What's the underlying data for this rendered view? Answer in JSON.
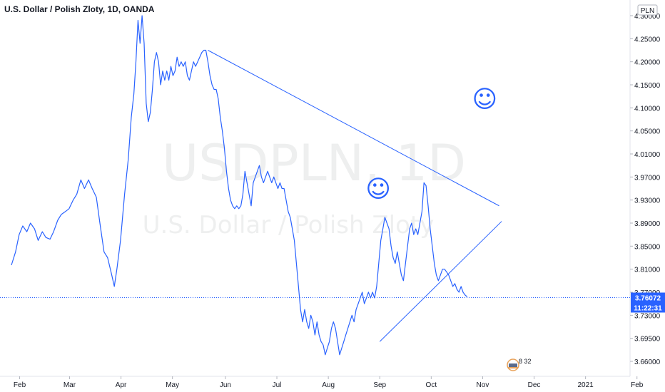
{
  "chart_data": {
    "type": "line",
    "title": "U.S. Dollar / Polish Zloty, 1D, OANDA",
    "currency": "PLN",
    "watermark": {
      "symbol": "USDPLN, 1D",
      "name": "U.S. Dollar / Polish Zloty"
    },
    "xlabel": "",
    "ylabel": "",
    "x_tick_labels": [
      {
        "label": "Feb",
        "t": 0.16
      },
      {
        "label": "Mar",
        "t": 1.13
      },
      {
        "label": "Apr",
        "t": 2.13
      },
      {
        "label": "May",
        "t": 3.13
      },
      {
        "label": "Jun",
        "t": 4.16
      },
      {
        "label": "Jul",
        "t": 5.16
      },
      {
        "label": "Aug",
        "t": 6.16
      },
      {
        "label": "Sep",
        "t": 7.16
      },
      {
        "label": "Oct",
        "t": 8.16
      },
      {
        "label": "Nov",
        "t": 9.16
      },
      {
        "label": "Dec",
        "t": 10.16
      },
      {
        "label": "2021",
        "t": 11.16
      },
      {
        "label": "Feb",
        "t": 12.16
      }
    ],
    "y_tick_labels": [
      "4.30000",
      "4.25000",
      "4.20000",
      "4.15000",
      "4.10000",
      "4.05000",
      "4.01000",
      "3.97000",
      "3.93000",
      "3.89000",
      "3.85000",
      "3.81000",
      "3.77000",
      "3.73000",
      "3.69500",
      "3.66000"
    ],
    "ylim": [
      3.645,
      4.31
    ],
    "series": [
      {
        "color": "#2962ff",
        "points": [
          [
            0,
            3.817
          ],
          [
            0.08,
            3.84
          ],
          [
            0.15,
            3.87
          ],
          [
            0.22,
            3.885
          ],
          [
            0.3,
            3.875
          ],
          [
            0.37,
            3.89
          ],
          [
            0.45,
            3.88
          ],
          [
            0.52,
            3.86
          ],
          [
            0.6,
            3.875
          ],
          [
            0.67,
            3.865
          ],
          [
            0.75,
            3.862
          ],
          [
            0.82,
            3.875
          ],
          [
            0.9,
            3.895
          ],
          [
            0.97,
            3.905
          ],
          [
            1.05,
            3.91
          ],
          [
            1.12,
            3.915
          ],
          [
            1.2,
            3.93
          ],
          [
            1.27,
            3.94
          ],
          [
            1.35,
            3.965
          ],
          [
            1.42,
            3.95
          ],
          [
            1.5,
            3.965
          ],
          [
            1.57,
            3.95
          ],
          [
            1.65,
            3.935
          ],
          [
            1.72,
            3.89
          ],
          [
            1.8,
            3.84
          ],
          [
            1.87,
            3.83
          ],
          [
            1.95,
            3.8
          ],
          [
            2.0,
            3.78
          ],
          [
            2.05,
            3.81
          ],
          [
            2.12,
            3.86
          ],
          [
            2.2,
            3.94
          ],
          [
            2.27,
            4.0
          ],
          [
            2.33,
            4.08
          ],
          [
            2.38,
            4.13
          ],
          [
            2.42,
            4.2
          ],
          [
            2.46,
            4.29
          ],
          [
            2.5,
            4.24
          ],
          [
            2.54,
            4.3
          ],
          [
            2.58,
            4.24
          ],
          [
            2.62,
            4.11
          ],
          [
            2.66,
            4.07
          ],
          [
            2.7,
            4.09
          ],
          [
            2.74,
            4.14
          ],
          [
            2.78,
            4.2
          ],
          [
            2.82,
            4.22
          ],
          [
            2.86,
            4.2
          ],
          [
            2.9,
            4.15
          ],
          [
            2.94,
            4.18
          ],
          [
            2.98,
            4.16
          ],
          [
            3.02,
            4.18
          ],
          [
            3.06,
            4.16
          ],
          [
            3.1,
            4.19
          ],
          [
            3.14,
            4.17
          ],
          [
            3.18,
            4.18
          ],
          [
            3.22,
            4.21
          ],
          [
            3.26,
            4.19
          ],
          [
            3.3,
            4.2
          ],
          [
            3.34,
            4.19
          ],
          [
            3.38,
            4.2
          ],
          [
            3.42,
            4.17
          ],
          [
            3.46,
            4.16
          ],
          [
            3.5,
            4.18
          ],
          [
            3.54,
            4.2
          ],
          [
            3.58,
            4.19
          ],
          [
            3.62,
            4.2
          ],
          [
            3.66,
            4.21
          ],
          [
            3.7,
            4.22
          ],
          [
            3.74,
            4.225
          ],
          [
            3.78,
            4.225
          ],
          [
            3.82,
            4.2
          ],
          [
            3.86,
            4.17
          ],
          [
            3.9,
            4.15
          ],
          [
            3.94,
            4.14
          ],
          [
            3.98,
            4.14
          ],
          [
            4.02,
            4.12
          ],
          [
            4.06,
            4.08
          ],
          [
            4.1,
            4.05
          ],
          [
            4.14,
            4.02
          ],
          [
            4.18,
            3.98
          ],
          [
            4.22,
            3.95
          ],
          [
            4.26,
            3.93
          ],
          [
            4.3,
            3.92
          ],
          [
            4.34,
            3.915
          ],
          [
            4.38,
            3.92
          ],
          [
            4.42,
            3.915
          ],
          [
            4.46,
            3.92
          ],
          [
            4.5,
            3.94
          ],
          [
            4.54,
            3.98
          ],
          [
            4.58,
            3.96
          ],
          [
            4.62,
            3.94
          ],
          [
            4.66,
            3.92
          ],
          [
            4.7,
            3.96
          ],
          [
            4.74,
            3.97
          ],
          [
            4.78,
            3.98
          ],
          [
            4.82,
            3.99
          ],
          [
            4.86,
            3.97
          ],
          [
            4.9,
            3.96
          ],
          [
            4.94,
            3.97
          ],
          [
            4.98,
            3.98
          ],
          [
            5.02,
            3.97
          ],
          [
            5.06,
            3.96
          ],
          [
            5.1,
            3.97
          ],
          [
            5.14,
            3.96
          ],
          [
            5.18,
            3.95
          ],
          [
            5.22,
            3.96
          ],
          [
            5.26,
            3.95
          ],
          [
            5.3,
            3.95
          ],
          [
            5.34,
            3.93
          ],
          [
            5.38,
            3.91
          ],
          [
            5.42,
            3.9
          ],
          [
            5.46,
            3.88
          ],
          [
            5.5,
            3.86
          ],
          [
            5.54,
            3.82
          ],
          [
            5.58,
            3.78
          ],
          [
            5.62,
            3.74
          ],
          [
            5.66,
            3.72
          ],
          [
            5.7,
            3.74
          ],
          [
            5.74,
            3.72
          ],
          [
            5.78,
            3.71
          ],
          [
            5.82,
            3.73
          ],
          [
            5.86,
            3.72
          ],
          [
            5.9,
            3.7
          ],
          [
            5.94,
            3.72
          ],
          [
            5.98,
            3.7
          ],
          [
            6.02,
            3.69
          ],
          [
            6.06,
            3.685
          ],
          [
            6.1,
            3.67
          ],
          [
            6.14,
            3.68
          ],
          [
            6.18,
            3.69
          ],
          [
            6.22,
            3.71
          ],
          [
            6.26,
            3.72
          ],
          [
            6.3,
            3.71
          ],
          [
            6.34,
            3.69
          ],
          [
            6.38,
            3.67
          ],
          [
            6.42,
            3.68
          ],
          [
            6.46,
            3.69
          ],
          [
            6.5,
            3.7
          ],
          [
            6.54,
            3.71
          ],
          [
            6.58,
            3.72
          ],
          [
            6.62,
            3.73
          ],
          [
            6.66,
            3.72
          ],
          [
            6.7,
            3.74
          ],
          [
            6.74,
            3.75
          ],
          [
            6.78,
            3.76
          ],
          [
            6.82,
            3.77
          ],
          [
            6.86,
            3.75
          ],
          [
            6.9,
            3.76
          ],
          [
            6.94,
            3.77
          ],
          [
            6.98,
            3.76
          ],
          [
            7.02,
            3.77
          ],
          [
            7.06,
            3.76
          ],
          [
            7.1,
            3.78
          ],
          [
            7.14,
            3.82
          ],
          [
            7.18,
            3.86
          ],
          [
            7.22,
            3.88
          ],
          [
            7.26,
            3.9
          ],
          [
            7.3,
            3.89
          ],
          [
            7.34,
            3.88
          ],
          [
            7.38,
            3.85
          ],
          [
            7.42,
            3.83
          ],
          [
            7.46,
            3.82
          ],
          [
            7.5,
            3.84
          ],
          [
            7.54,
            3.82
          ],
          [
            7.58,
            3.8
          ],
          [
            7.62,
            3.79
          ],
          [
            7.66,
            3.82
          ],
          [
            7.7,
            3.85
          ],
          [
            7.74,
            3.88
          ],
          [
            7.78,
            3.89
          ],
          [
            7.82,
            3.87
          ],
          [
            7.86,
            3.88
          ],
          [
            7.9,
            3.87
          ],
          [
            7.94,
            3.89
          ],
          [
            7.98,
            3.91
          ],
          [
            8.02,
            3.96
          ],
          [
            8.06,
            3.955
          ],
          [
            8.1,
            3.92
          ],
          [
            8.14,
            3.88
          ],
          [
            8.18,
            3.85
          ],
          [
            8.22,
            3.82
          ],
          [
            8.26,
            3.8
          ],
          [
            8.3,
            3.79
          ],
          [
            8.34,
            3.8
          ],
          [
            8.38,
            3.81
          ],
          [
            8.42,
            3.81
          ],
          [
            8.46,
            3.805
          ],
          [
            8.5,
            3.8
          ],
          [
            8.54,
            3.79
          ],
          [
            8.58,
            3.78
          ],
          [
            8.62,
            3.785
          ],
          [
            8.66,
            3.775
          ],
          [
            8.7,
            3.77
          ],
          [
            8.74,
            3.78
          ],
          [
            8.78,
            3.77
          ],
          [
            8.82,
            3.765
          ],
          [
            8.86,
            3.762
          ]
        ]
      }
    ],
    "last_value_label": "3.76072",
    "countdown_label": "11:22:31",
    "trendlines": [
      {
        "from": [
          3.82,
          4.225
        ],
        "to": [
          9.48,
          3.92
        ]
      },
      {
        "from": [
          7.16,
          3.69
        ],
        "to": [
          9.53,
          3.893
        ]
      }
    ],
    "annotations": [
      {
        "text": "☺",
        "t": 7.13,
        "v": 3.95
      },
      {
        "text": "☺",
        "t": 9.2,
        "v": 4.12
      }
    ],
    "badge_text": "8 32",
    "grid": false,
    "line_color": "#2962ff",
    "accent_color": "#2962ff"
  }
}
